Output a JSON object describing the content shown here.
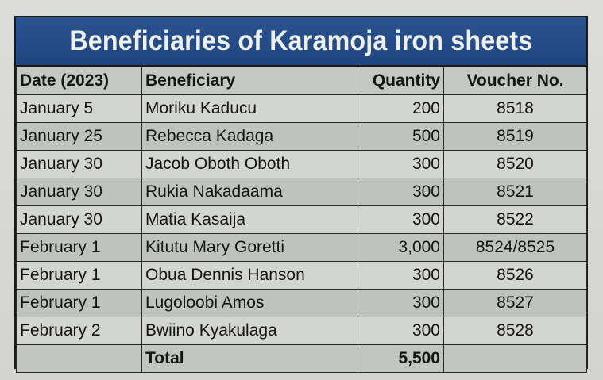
{
  "title": "Beneficiaries of Karamoja iron sheets",
  "headers": {
    "date": "Date (2023)",
    "beneficiary": "Beneficiary",
    "quantity": "Quantity",
    "voucher": "Voucher No."
  },
  "rows": [
    {
      "date": "January 5",
      "beneficiary": "Moriku Kaducu",
      "quantity": "200",
      "voucher": "8518"
    },
    {
      "date": "January 25",
      "beneficiary": "Rebecca Kadaga",
      "quantity": "500",
      "voucher": "8519"
    },
    {
      "date": "January 30",
      "beneficiary": "Jacob Oboth Oboth",
      "quantity": "300",
      "voucher": "8520"
    },
    {
      "date": "January 30",
      "beneficiary": "Rukia Nakadaama",
      "quantity": "300",
      "voucher": "8521"
    },
    {
      "date": "January 30",
      "beneficiary": "Matia Kasaija",
      "quantity": "300",
      "voucher": "8522"
    },
    {
      "date": "February 1",
      "beneficiary": "Kitutu Mary Goretti",
      "quantity": "3,000",
      "voucher": "8524/8525"
    },
    {
      "date": "February 1",
      "beneficiary": "Obua Dennis Hanson",
      "quantity": "300",
      "voucher": "8526"
    },
    {
      "date": "February 1",
      "beneficiary": "Lugoloobi Amos",
      "quantity": "300",
      "voucher": "8527"
    },
    {
      "date": "February 2",
      "beneficiary": "Bwiino Kyakulaga",
      "quantity": "300",
      "voucher": "8528"
    }
  ],
  "total": {
    "label": "Total",
    "quantity": "5,500"
  }
}
